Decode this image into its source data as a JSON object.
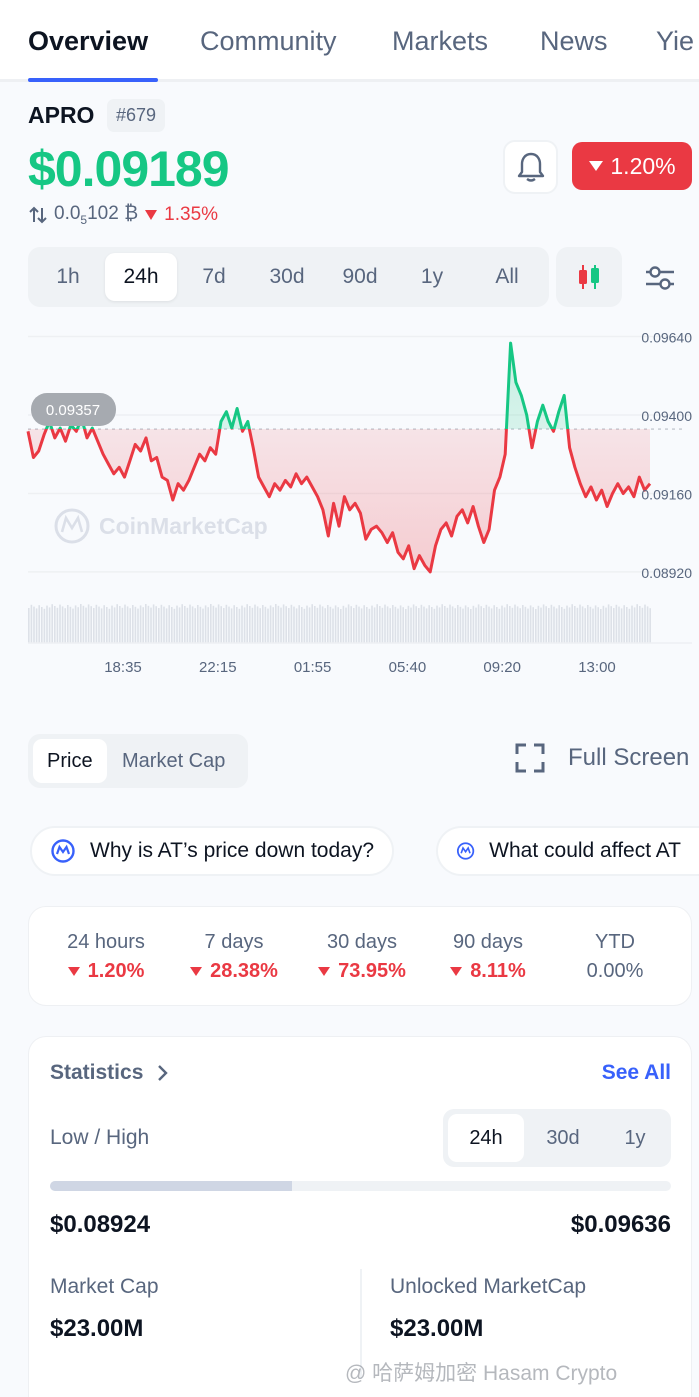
{
  "tabs": [
    {
      "label": "Overview",
      "active": true
    },
    {
      "label": "Community"
    },
    {
      "label": "Markets"
    },
    {
      "label": "News"
    },
    {
      "label": "Yie"
    }
  ],
  "coin": {
    "name": "APRO",
    "rank": "#679",
    "price": "$0.09189",
    "btc_price_prefix": "0.0",
    "btc_price_sub": "5",
    "btc_price_rest": "102 ₿",
    "btc_change": "1.35%",
    "change_24h": "1.20%"
  },
  "ranges": [
    "1h",
    "24h",
    "7d",
    "30d",
    "90d",
    "1y",
    "All"
  ],
  "active_range": "24h",
  "chart_data": {
    "type": "line",
    "watermark": "CoinMarketCap",
    "start_label": "0.09357",
    "y_ticks": [
      "0.09640",
      "0.09400",
      "0.09160",
      "0.08920"
    ],
    "x_ticks": [
      "18:35",
      "22:15",
      "01:55",
      "05:40",
      "09:20",
      "13:00"
    ],
    "ylim": [
      0.0888,
      0.0966
    ],
    "reference_value": 0.09357,
    "values": [
      0.0935,
      0.0927,
      0.0929,
      0.0934,
      0.0938,
      0.0933,
      0.0936,
      0.0932,
      0.0937,
      0.0935,
      0.0939,
      0.0933,
      0.0936,
      0.0932,
      0.0928,
      0.0925,
      0.0922,
      0.0924,
      0.0921,
      0.0926,
      0.0931,
      0.0929,
      0.0933,
      0.0926,
      0.0927,
      0.0921,
      0.092,
      0.0914,
      0.0919,
      0.0917,
      0.092,
      0.0924,
      0.0928,
      0.0926,
      0.093,
      0.0928,
      0.0938,
      0.0941,
      0.0936,
      0.0942,
      0.0935,
      0.0938,
      0.093,
      0.0921,
      0.0918,
      0.0915,
      0.0919,
      0.0917,
      0.092,
      0.0918,
      0.0922,
      0.0919,
      0.0921,
      0.0918,
      0.0915,
      0.0911,
      0.0903,
      0.0913,
      0.0906,
      0.0915,
      0.0911,
      0.0913,
      0.091,
      0.0902,
      0.0905,
      0.0906,
      0.0904,
      0.0901,
      0.0904,
      0.0898,
      0.0896,
      0.09,
      0.0893,
      0.0897,
      0.0894,
      0.0892,
      0.09,
      0.0905,
      0.0907,
      0.0903,
      0.0909,
      0.0911,
      0.0907,
      0.0912,
      0.0906,
      0.0901,
      0.0905,
      0.0917,
      0.0921,
      0.0928,
      0.0962,
      0.095,
      0.0946,
      0.094,
      0.093,
      0.0938,
      0.0943,
      0.0938,
      0.0935,
      0.0941,
      0.0946,
      0.093,
      0.0924,
      0.0919,
      0.0915,
      0.0918,
      0.0914,
      0.0917,
      0.0912,
      0.0916,
      0.0919,
      0.0916,
      0.0918,
      0.0915,
      0.0921,
      0.0917,
      0.0919
    ]
  },
  "chart_toggle": {
    "price": "Price",
    "market_cap": "Market Cap",
    "full_screen": "Full Screen"
  },
  "questions": [
    "Why is AT’s price down today?",
    "What could affect AT"
  ],
  "performance": [
    {
      "label": "24 hours",
      "value": "1.20%",
      "dir": "down"
    },
    {
      "label": "7 days",
      "value": "28.38%",
      "dir": "down"
    },
    {
      "label": "30 days",
      "value": "73.95%",
      "dir": "down"
    },
    {
      "label": "90 days",
      "value": "8.11%",
      "dir": "down"
    },
    {
      "label": "YTD",
      "value": "0.00%",
      "dir": "none"
    }
  ],
  "statistics": {
    "title": "Statistics",
    "see_all": "See All",
    "low_high_label": "Low / High",
    "periods": [
      "24h",
      "30d",
      "1y"
    ],
    "active_period": "24h",
    "low": "$0.08924",
    "high": "$0.09636",
    "range_position": 0.39,
    "market_cap_label": "Market Cap",
    "market_cap": "$23.00M",
    "unlocked_label": "Unlocked MarketCap",
    "unlocked_value": "$23.00M"
  },
  "watermark": "@ 哈萨姆加密 Hasam Crypto",
  "colors": {
    "up": "#16c784",
    "down": "#ea3943",
    "accent": "#3861fb"
  }
}
